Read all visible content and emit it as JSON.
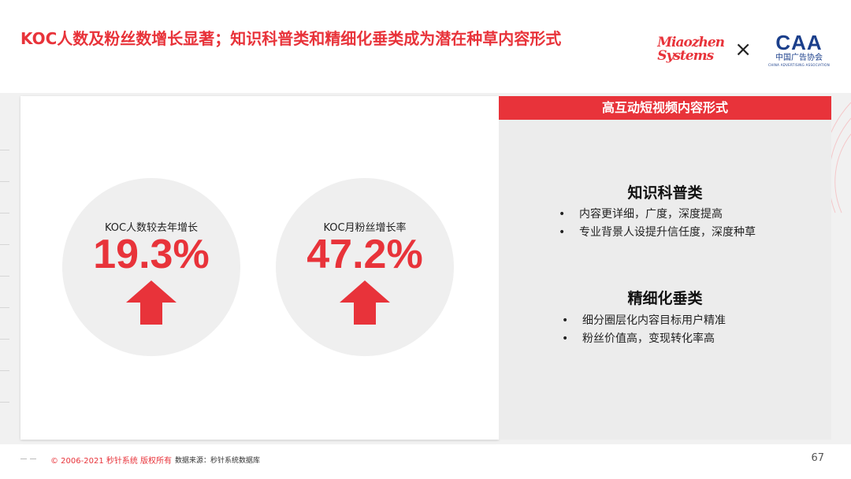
{
  "header": {
    "title": "KOC人数及粉丝数增长显著；知识科普类和精细化垂类成为潜在种草内容形式",
    "logo_miaozhen_line1": "Miaozhen",
    "logo_miaozhen_line2": "Systems",
    "logo_separator": "×",
    "logo_caa_mark": "CAA",
    "logo_caa_cn": "中国广告协会",
    "logo_caa_en": "CHINA ADVERTISING ASSOCIATION"
  },
  "stats": [
    {
      "label": "KOC人数较去年增长",
      "value": "19.3%"
    },
    {
      "label": "KOC月粉丝增长率",
      "value": "47.2%"
    }
  ],
  "right_panel": {
    "header": "高互动短视频内容形式",
    "sections": [
      {
        "title": "知识科普类",
        "bullets": [
          "内容更详细，广度，深度提高",
          "专业背景人设提升信任度，深度种草"
        ]
      },
      {
        "title": "精细化垂类",
        "bullets": [
          "细分圈层化内容目标用户精准",
          "粉丝价值高，变现转化率高"
        ]
      }
    ]
  },
  "footer": {
    "copyright": "© 2006-2021 秒针系统 版权所有",
    "source": "数据来源：秒针系统数据库",
    "page_number": "67"
  },
  "colors": {
    "accent": "#e8333a",
    "caa_blue": "#1b3f8b"
  },
  "icons": [
    "up-arrow-icon"
  ]
}
